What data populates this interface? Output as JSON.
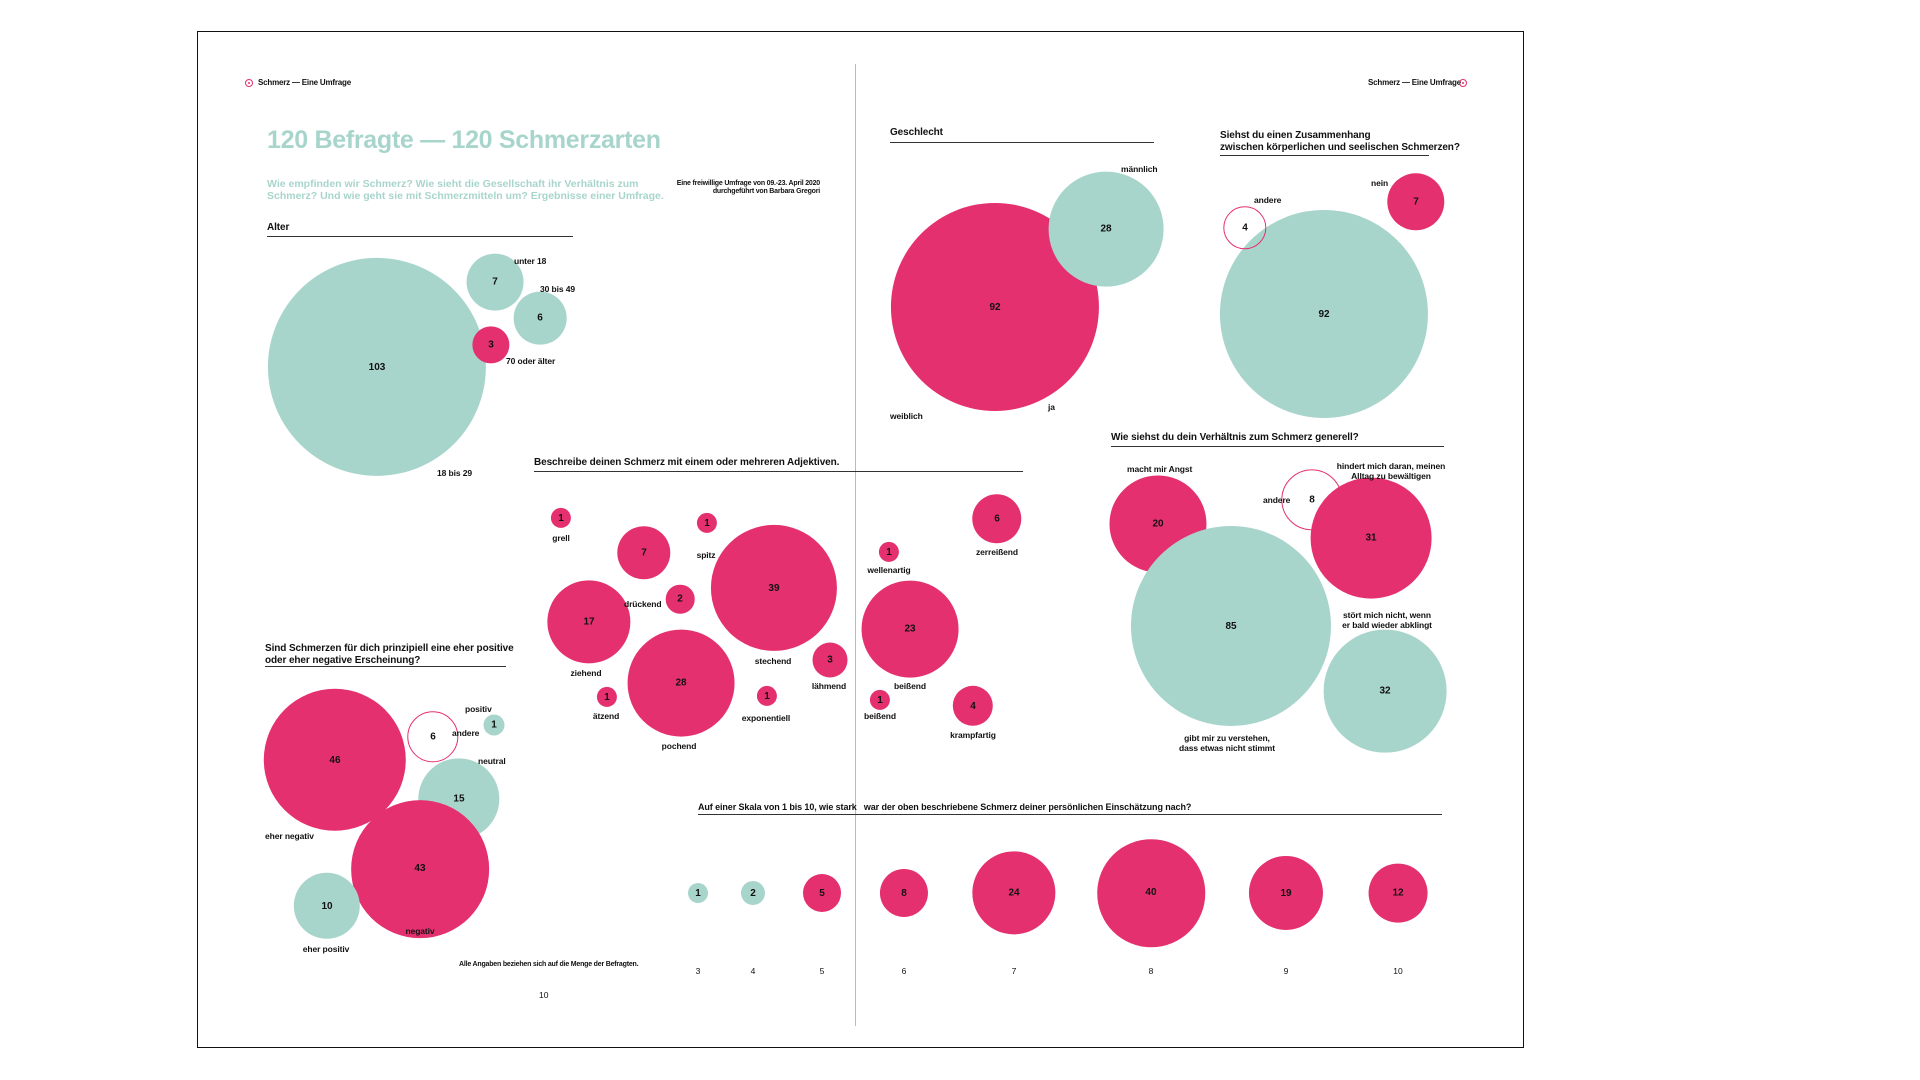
{
  "header": {
    "running_title_left": "Schmerz — Eine Umfrage",
    "running_title_right": "Schmerz — Eine Umfrage"
  },
  "intro": {
    "title": "120 Befragte — 120 Schmerzarten",
    "lead": "Wie empfinden wir Schmerz? Wie sieht die Gesellschaft ihr Verhältnis zum Schmerz? Und wie geht sie mit Schmerzmitteln um? Ergebnisse einer Umfrage.",
    "note_line1": "Eine freiwillige Umfrage von 09.-23. April 2020",
    "note_line2": "durchgeführt von Barbara Gregori"
  },
  "footer": {
    "footnote": "Alle Angaben beziehen sich auf die Menge der Befragten.",
    "page_number": "10"
  },
  "colors": {
    "accent_pink": "#e5306f",
    "accent_mint": "#a8d5cb"
  },
  "chart_data": [
    {
      "id": "alter",
      "type": "bubble",
      "title": "Alter",
      "items": [
        {
          "label": "18 bis 29",
          "value": 103,
          "style": "mint"
        },
        {
          "label": "unter 18",
          "value": 7,
          "style": "mint"
        },
        {
          "label": "30 bis 49",
          "value": 6,
          "style": "mint"
        },
        {
          "label": "70 oder älter",
          "value": 3,
          "style": "pink"
        }
      ]
    },
    {
      "id": "geschlecht",
      "type": "bubble",
      "title": "Geschlecht",
      "items": [
        {
          "label": "weiblich",
          "value": 92,
          "style": "pink"
        },
        {
          "label": "männlich",
          "value": 28,
          "style": "mint"
        }
      ]
    },
    {
      "id": "zusammenhang",
      "type": "bubble",
      "title_line1": "Siehst du einen Zusammenhang",
      "title_line2": "zwischen körperlichen und seelischen Schmerzen?",
      "items": [
        {
          "label": "ja",
          "value": 92,
          "style": "mint"
        },
        {
          "label": "nein",
          "value": 7,
          "style": "pink"
        },
        {
          "label": "andere",
          "value": 4,
          "style": "outline"
        }
      ]
    },
    {
      "id": "verhaeltnis",
      "type": "bubble",
      "title": "Wie siehst du dein Verhältnis zum Schmerz generell?",
      "items": [
        {
          "label": "macht mir Angst",
          "value": 20,
          "style": "pink"
        },
        {
          "label": "gibt mir zu verstehen, dass etwas nicht stimmt",
          "label_line1": "gibt mir zu verstehen,",
          "label_line2": "dass etwas nicht stimmt",
          "value": 85,
          "style": "mint"
        },
        {
          "label": "andere",
          "value": 8,
          "style": "outline"
        },
        {
          "label": "hindert mich daran, meinen Alltag zu bewältigen",
          "label_line1": "hindert mich daran, meinen",
          "label_line2": "Alltag zu bewältigen",
          "value": 31,
          "style": "pink"
        },
        {
          "label": "stört mich nicht, wenn er bald wieder abklingt",
          "label_line1": "stört mich nicht, wenn",
          "label_line2": "er bald wieder abklingt",
          "value": 32,
          "style": "mint"
        }
      ]
    },
    {
      "id": "adjektive",
      "type": "bubble",
      "title": "Beschreibe deinen Schmerz mit einem oder mehreren Adjektiven.",
      "items": [
        {
          "label": "grell",
          "value": 1,
          "style": "pink"
        },
        {
          "label": "drückend",
          "value": 7,
          "style": "pink"
        },
        {
          "label": "spitz",
          "value": 1,
          "style": "pink"
        },
        {
          "label": "stechend",
          "value": 39,
          "style": "pink"
        },
        {
          "label": "",
          "value": 2,
          "style": "pink"
        },
        {
          "label": "ziehend",
          "value": 17,
          "style": "pink"
        },
        {
          "label": "pochend",
          "value": 28,
          "style": "pink"
        },
        {
          "label": "ätzend",
          "value": 1,
          "style": "pink"
        },
        {
          "label": "exponentiell",
          "value": 1,
          "style": "pink"
        },
        {
          "label": "lähmend",
          "value": 3,
          "style": "pink"
        },
        {
          "label": "zerreißend",
          "value": 6,
          "style": "pink"
        },
        {
          "label": "wellenartig",
          "value": 1,
          "style": "pink"
        },
        {
          "label": "beißend",
          "value": 23,
          "style": "pink"
        },
        {
          "label": "beißend",
          "value": 1,
          "style": "pink"
        },
        {
          "label": "krampfartig",
          "value": 4,
          "style": "pink"
        }
      ]
    },
    {
      "id": "positiv-negativ",
      "type": "bubble",
      "title_line1": "Sind Schmerzen für dich prinzipiell eine eher positive",
      "title_line2": "oder eher negative Erscheinung?",
      "items": [
        {
          "label": "eher negativ",
          "value": 46,
          "style": "pink"
        },
        {
          "label": "andere",
          "value": 6,
          "style": "outline"
        },
        {
          "label": "positiv",
          "value": 1,
          "style": "mint"
        },
        {
          "label": "neutral",
          "value": 15,
          "style": "mint"
        },
        {
          "label": "negativ",
          "value": 43,
          "style": "pink"
        },
        {
          "label": "eher positiv",
          "value": 10,
          "style": "mint"
        }
      ]
    },
    {
      "id": "skala",
      "type": "bubble",
      "title": "Auf einer Skala von 1 bis 10, wie stark   war der oben beschriebene Schmerz deiner persönlichen Einschätzung nach?",
      "categories": [
        "3",
        "4",
        "5",
        "6",
        "7",
        "8",
        "9",
        "10"
      ],
      "items": [
        {
          "label": "3",
          "value": 1,
          "style": "mint"
        },
        {
          "label": "4",
          "value": 2,
          "style": "mint"
        },
        {
          "label": "5",
          "value": 5,
          "style": "pink"
        },
        {
          "label": "6",
          "value": 8,
          "style": "pink"
        },
        {
          "label": "7",
          "value": 24,
          "style": "pink"
        },
        {
          "label": "8",
          "value": 40,
          "style": "pink"
        },
        {
          "label": "9",
          "value": 19,
          "style": "pink"
        },
        {
          "label": "10",
          "value": 12,
          "style": "pink"
        }
      ]
    }
  ]
}
